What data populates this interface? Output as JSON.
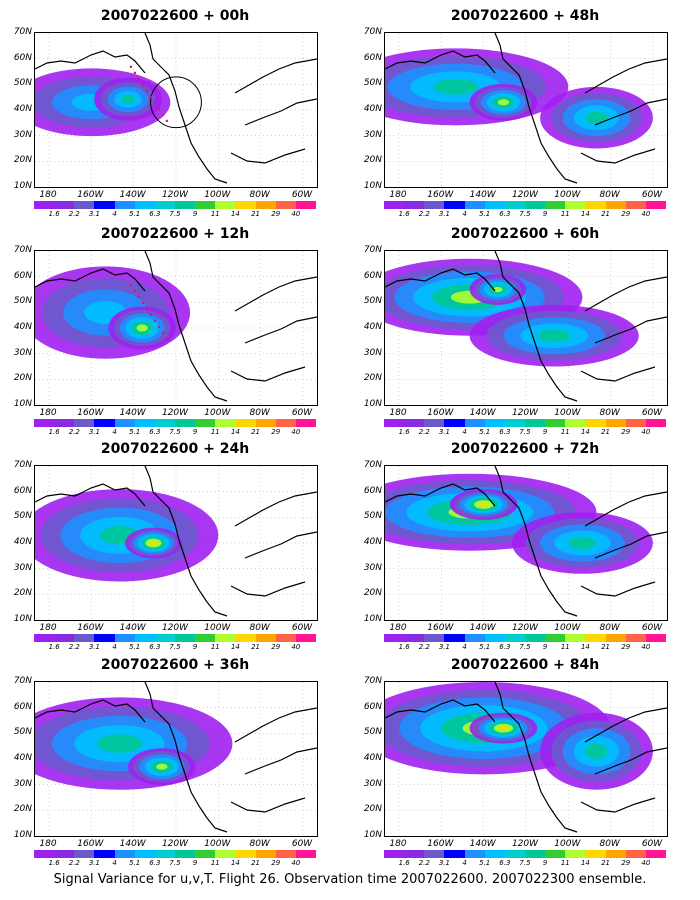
{
  "panels": [
    {
      "title": "2007022600 + 00h",
      "blobs": [
        [
          0.2,
          0.45,
          0.28,
          0.22,
          0.55
        ],
        [
          0.33,
          0.43,
          0.12,
          0.14,
          0.75
        ]
      ],
      "circle": true,
      "dots": true
    },
    {
      "title": "2007022600 + 48h",
      "blobs": [
        [
          0.25,
          0.35,
          0.4,
          0.25,
          0.75
        ],
        [
          0.42,
          0.45,
          0.12,
          0.12,
          0.9
        ],
        [
          0.75,
          0.55,
          0.2,
          0.2,
          0.65
        ]
      ],
      "circle": false,
      "dots": false
    },
    {
      "title": "2007022600 + 12h",
      "blobs": [
        [
          0.25,
          0.4,
          0.3,
          0.3,
          0.6
        ],
        [
          0.38,
          0.5,
          0.12,
          0.14,
          0.85
        ]
      ],
      "circle": false,
      "dots": true
    },
    {
      "title": "2007022600 + 60h",
      "blobs": [
        [
          0.3,
          0.3,
          0.4,
          0.25,
          0.8
        ],
        [
          0.4,
          0.25,
          0.1,
          0.1,
          0.9
        ],
        [
          0.6,
          0.55,
          0.3,
          0.2,
          0.7
        ]
      ],
      "circle": false,
      "dots": false
    },
    {
      "title": "2007022600 + 24h",
      "blobs": [
        [
          0.3,
          0.45,
          0.35,
          0.3,
          0.65
        ],
        [
          0.42,
          0.5,
          0.1,
          0.1,
          0.95
        ]
      ],
      "circle": false,
      "dots": false
    },
    {
      "title": "2007022600 + 72h",
      "blobs": [
        [
          0.3,
          0.3,
          0.45,
          0.25,
          0.85
        ],
        [
          0.35,
          0.25,
          0.12,
          0.1,
          1.0
        ],
        [
          0.7,
          0.5,
          0.25,
          0.2,
          0.7
        ]
      ],
      "circle": false,
      "dots": false
    },
    {
      "title": "2007022600 + 36h",
      "blobs": [
        [
          0.3,
          0.4,
          0.4,
          0.3,
          0.7
        ],
        [
          0.45,
          0.55,
          0.12,
          0.12,
          0.9
        ]
      ],
      "circle": false,
      "dots": false
    },
    {
      "title": "2007022600 + 84h",
      "blobs": [
        [
          0.35,
          0.3,
          0.45,
          0.3,
          0.9
        ],
        [
          0.42,
          0.3,
          0.12,
          0.1,
          1.05
        ],
        [
          0.75,
          0.45,
          0.2,
          0.25,
          0.75
        ]
      ],
      "circle": false,
      "dots": false
    }
  ],
  "y_labels": [
    "70N",
    "60N",
    "50N",
    "40N",
    "30N",
    "20N",
    "10N"
  ],
  "x_labels": [
    "180",
    "160W",
    "140W",
    "120W",
    "100W",
    "80W",
    "60W"
  ],
  "colorbar": {
    "labels": [
      "1.6",
      "2.2",
      "3.1",
      "4",
      "5.1",
      "6.3",
      "7.5",
      "9",
      "11",
      "14",
      "21",
      "29",
      "40"
    ],
    "colors": [
      "#a020f0",
      "#8a2be2",
      "#6a5acd",
      "#0000ff",
      "#1e90ff",
      "#00bfff",
      "#00ced1",
      "#00c896",
      "#32cd32",
      "#adff2f",
      "#ffd700",
      "#ffa500",
      "#ff6347",
      "#ff1493"
    ]
  },
  "caption": "Signal Variance for u,v,T. Flight 26. Observation time 2007022600. 2007022300 ensemble."
}
